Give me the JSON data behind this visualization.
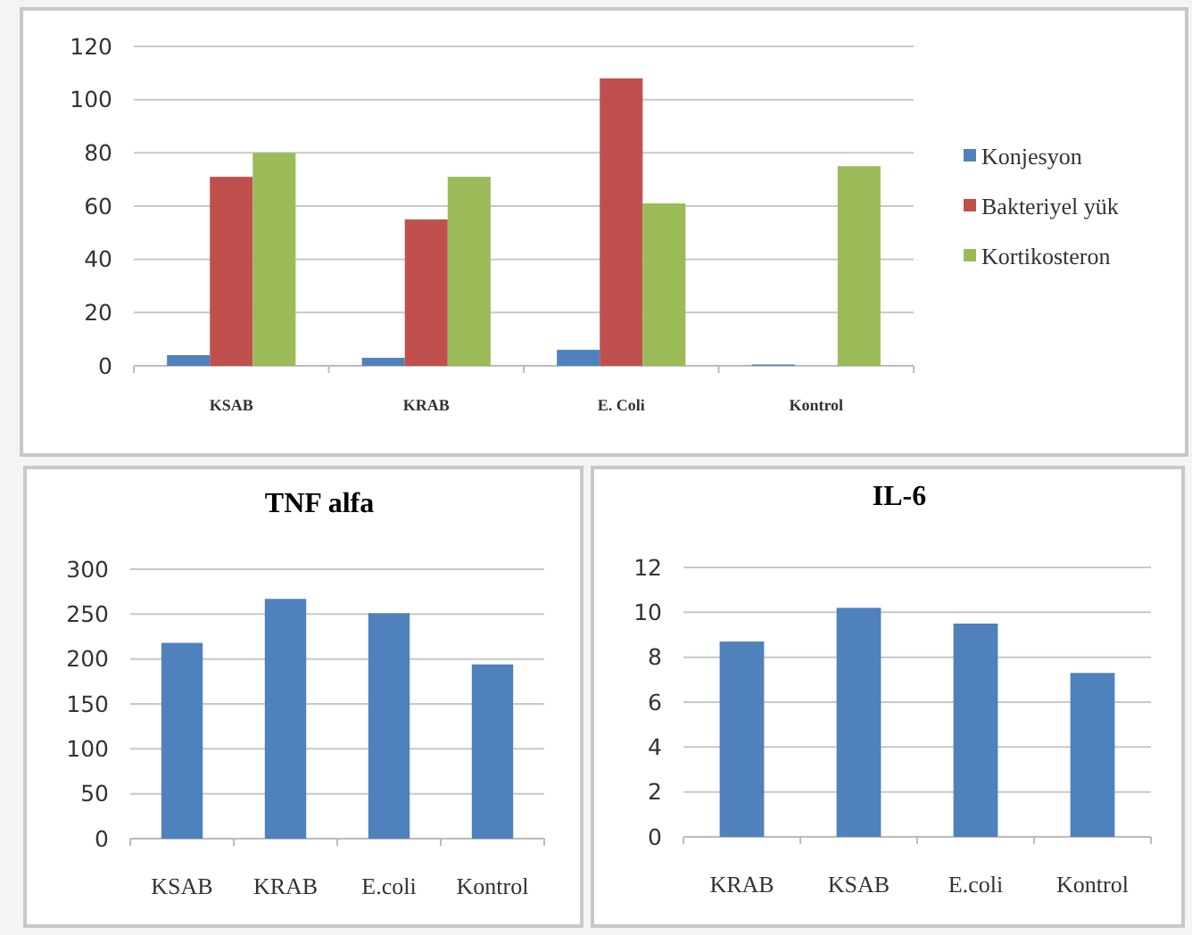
{
  "chart_data": [
    {
      "type": "bar",
      "categories": [
        "KSAB",
        "KRAB",
        "E. Coli",
        "Kontrol"
      ],
      "series": [
        {
          "name": "Konjesyon",
          "color": "#4f81bd",
          "values": [
            4,
            3,
            6,
            0.5
          ]
        },
        {
          "name": "Bakteriyel yük",
          "color": "#c0504d",
          "values": [
            71,
            55,
            108,
            0
          ]
        },
        {
          "name": "Kortikosteron",
          "color": "#9bbb59",
          "values": [
            80,
            71,
            61,
            75
          ]
        }
      ],
      "ylim": [
        0,
        120
      ],
      "yticks": [
        0,
        20,
        40,
        60,
        80,
        100,
        120
      ],
      "grid": "y",
      "legend": "right"
    },
    {
      "type": "bar",
      "title": "TNF alfa",
      "categories": [
        "KSAB",
        "KRAB",
        "E.coli",
        "Kontrol"
      ],
      "values": [
        218,
        267,
        251,
        194
      ],
      "color": "#4f81bd",
      "ylim": [
        0,
        300
      ],
      "yticks": [
        0,
        50,
        100,
        150,
        200,
        250,
        300
      ],
      "grid": "y"
    },
    {
      "type": "bar",
      "title": "IL-6",
      "categories": [
        "KRAB",
        "KSAB",
        "E.coli",
        "Kontrol"
      ],
      "values": [
        8.7,
        10.2,
        9.5,
        7.3
      ],
      "color": "#4f81bd",
      "ylim": [
        0,
        12
      ],
      "yticks": [
        0,
        2,
        4,
        6,
        8,
        10,
        12
      ],
      "grid": "y"
    }
  ]
}
